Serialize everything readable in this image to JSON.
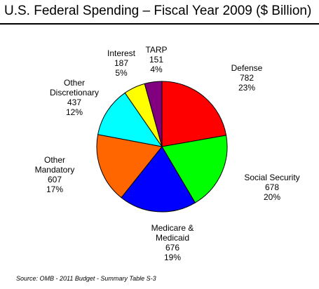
{
  "chart_data": {
    "type": "pie",
    "title": "U.S. Federal Spending – Fiscal Year 2009 ($ Billion)",
    "unit": "$ Billion",
    "source": "Source:  OMB - 2011 Budget - Summary Table S-3",
    "slices": [
      {
        "label_lines": [
          "Defense"
        ],
        "value": 782,
        "value_text": "782",
        "percent_text": "23%",
        "color": "#ff0000"
      },
      {
        "label_lines": [
          "Social Security"
        ],
        "value": 678,
        "value_text": "678",
        "percent_text": "20%",
        "color": "#00ff00"
      },
      {
        "label_lines": [
          "Medicare &",
          "Medicaid"
        ],
        "value": 676,
        "value_text": "676",
        "percent_text": "19%",
        "color": "#0000ff"
      },
      {
        "label_lines": [
          "Other",
          "Mandatory"
        ],
        "value": 607,
        "value_text": "607",
        "percent_text": "17%",
        "color": "#ff6600"
      },
      {
        "label_lines": [
          "Other",
          "Discretionary"
        ],
        "value": 437,
        "value_text": "437",
        "percent_text": "12%",
        "color": "#00ffff"
      },
      {
        "label_lines": [
          "Interest"
        ],
        "value": 187,
        "value_text": "187",
        "percent_text": "5%",
        "color": "#ffff00"
      },
      {
        "label_lines": [
          "TARP"
        ],
        "value": 151,
        "value_text": "151",
        "percent_text": "4%",
        "color": "#800080"
      }
    ]
  }
}
